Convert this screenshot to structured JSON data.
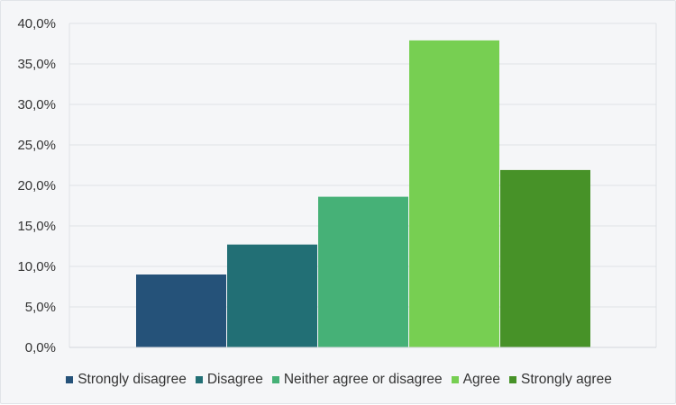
{
  "chart_data": {
    "type": "bar",
    "series": [
      {
        "name": "Strongly disagree",
        "value": 9.0,
        "color": "#255279"
      },
      {
        "name": "Disagree",
        "value": 12.7,
        "color": "#226f75"
      },
      {
        "name": "Neither agree or disagree",
        "value": 18.6,
        "color": "#46b177"
      },
      {
        "name": "Agree",
        "value": 37.9,
        "color": "#77cf52"
      },
      {
        "name": "Strongly agree",
        "value": 21.9,
        "color": "#479228"
      }
    ],
    "yticks": [
      "0,0%",
      "5,0%",
      "10,0%",
      "15,0%",
      "20,0%",
      "25,0%",
      "30,0%",
      "35,0%",
      "40,0%"
    ],
    "ylim": [
      0,
      40
    ],
    "grid": true,
    "legend_position": "bottom",
    "title": "",
    "xlabel": "",
    "ylabel": ""
  }
}
